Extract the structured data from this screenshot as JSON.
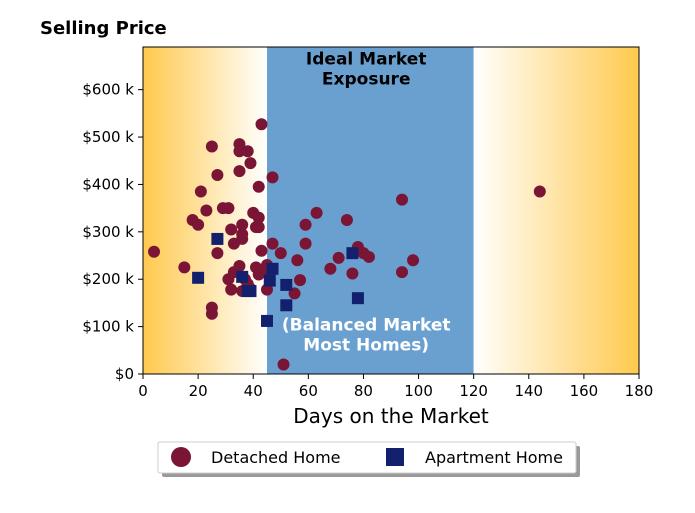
{
  "chart_data": {
    "type": "scatter",
    "title": "Selling Price",
    "xlabel": "Days on the Market",
    "ylabel": "",
    "xlim": [
      0,
      180
    ],
    "ylim": [
      0,
      690000
    ],
    "x_ticks": [
      0,
      20,
      40,
      60,
      80,
      100,
      120,
      140,
      160,
      180
    ],
    "x_tick_labels": [
      "0",
      "20",
      "40",
      "60",
      "80",
      "100",
      "120",
      "140",
      "160",
      "180"
    ],
    "y_ticks": [
      0,
      100000,
      200000,
      300000,
      400000,
      500000,
      600000
    ],
    "y_tick_labels": [
      "$0",
      "$100 k",
      "$200 k",
      "$300 k",
      "$400 k",
      "$500 k",
      "$600 k"
    ],
    "grid": false,
    "legend_position": "bottom-center",
    "regions": [
      {
        "x_range": [
          0,
          45
        ],
        "style": "gradient",
        "color_edge": "#ffc94d",
        "color_inner": "#ffffff"
      },
      {
        "x_range": [
          45,
          120
        ],
        "style": "solid",
        "color": "#6aa0cf"
      },
      {
        "x_range": [
          120,
          180
        ],
        "style": "gradient",
        "color_edge": "#ffc94d",
        "color_inner": "#ffffff"
      }
    ],
    "annotations": [
      {
        "lines": [
          "Ideal Market",
          "Exposure"
        ],
        "x": 81,
        "y": 645000,
        "color": "#000000"
      },
      {
        "lines": [
          "(Balanced Market",
          "Most Homes)"
        ],
        "x": 81,
        "y": 83000,
        "color": "#ffffff"
      }
    ],
    "series": [
      {
        "name": "Detached Home",
        "marker": "circle",
        "color": "#7b1535",
        "points": [
          [
            4,
            258000
          ],
          [
            15,
            225000
          ],
          [
            18,
            325000
          ],
          [
            20,
            315000
          ],
          [
            21,
            385000
          ],
          [
            23,
            345000
          ],
          [
            25,
            480000
          ],
          [
            25,
            140000
          ],
          [
            25,
            127000
          ],
          [
            27,
            420000
          ],
          [
            27,
            255000
          ],
          [
            29,
            350000
          ],
          [
            31,
            350000
          ],
          [
            31,
            200000
          ],
          [
            32,
            178000
          ],
          [
            32,
            305000
          ],
          [
            33,
            275000
          ],
          [
            33,
            215000
          ],
          [
            35,
            485000
          ],
          [
            35,
            470000
          ],
          [
            35,
            428000
          ],
          [
            35,
            228000
          ],
          [
            36,
            175000
          ],
          [
            36,
            285000
          ],
          [
            36,
            295000
          ],
          [
            36,
            315000
          ],
          [
            37,
            200000
          ],
          [
            38,
            470000
          ],
          [
            38,
            190000
          ],
          [
            39,
            445000
          ],
          [
            39,
            180000
          ],
          [
            40,
            340000
          ],
          [
            41,
            310000
          ],
          [
            41,
            225000
          ],
          [
            42,
            395000
          ],
          [
            42,
            330000
          ],
          [
            42,
            310000
          ],
          [
            42,
            210000
          ],
          [
            43,
            527000
          ],
          [
            43,
            260000
          ],
          [
            44,
            218000
          ],
          [
            45,
            230000
          ],
          [
            45,
            178000
          ],
          [
            47,
            415000
          ],
          [
            47,
            275000
          ],
          [
            50,
            255000
          ],
          [
            51,
            20000
          ],
          [
            55,
            170000
          ],
          [
            56,
            240000
          ],
          [
            57,
            198000
          ],
          [
            59,
            315000
          ],
          [
            59,
            275000
          ],
          [
            63,
            340000
          ],
          [
            68,
            222000
          ],
          [
            71,
            245000
          ],
          [
            74,
            325000
          ],
          [
            76,
            212000
          ],
          [
            78,
            268000
          ],
          [
            80,
            255000
          ],
          [
            82,
            247000
          ],
          [
            94,
            368000
          ],
          [
            94,
            215000
          ],
          [
            98,
            240000
          ],
          [
            144,
            385000
          ]
        ]
      },
      {
        "name": "Apartment Home",
        "marker": "square",
        "color": "#13206d",
        "points": [
          [
            20,
            203000
          ],
          [
            27,
            285000
          ],
          [
            36,
            205000
          ],
          [
            38,
            175000
          ],
          [
            39,
            175000
          ],
          [
            45,
            112000
          ],
          [
            46,
            197000
          ],
          [
            47,
            222000
          ],
          [
            52,
            188000
          ],
          [
            52,
            145000
          ],
          [
            76,
            255000
          ],
          [
            78,
            160000
          ]
        ]
      }
    ]
  }
}
